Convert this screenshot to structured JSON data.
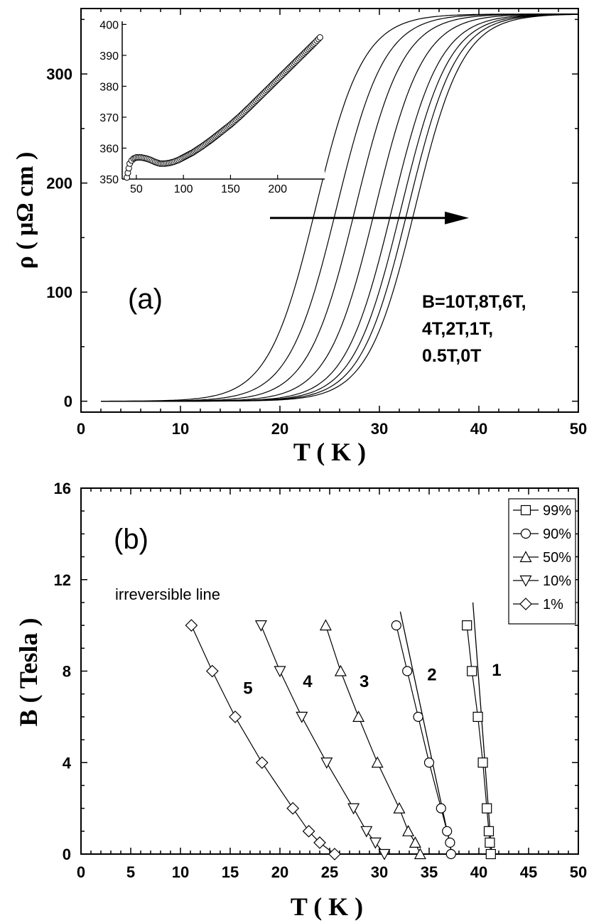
{
  "chart_data": [
    {
      "panel": "(a)",
      "type": "line",
      "xlabel": "T ( K )",
      "ylabel": "ρ ( μΩ cm )",
      "xlim": [
        0,
        50
      ],
      "ylim": [
        -10,
        360
      ],
      "xticks": [
        0,
        10,
        20,
        30,
        40,
        50
      ],
      "yticks": [
        0,
        100,
        200,
        300
      ],
      "panel_label": "(a)",
      "annotation_lines": [
        "B=10T,8T,6T,",
        "4T,2T,1T,",
        "0.5T,0T"
      ],
      "arrow": {
        "from": [
          19,
          168
        ],
        "to": [
          39,
          168
        ]
      },
      "curve_model": {
        "rho_normal": 355,
        "transition_width_K": 2.4,
        "T_start": 2,
        "T_end": 50
      },
      "series": [
        {
          "field": "10T",
          "T_mid": 23.6
        },
        {
          "field": "8T",
          "T_mid": 25.7
        },
        {
          "field": "6T",
          "T_mid": 27.6
        },
        {
          "field": "4T",
          "T_mid": 29.6
        },
        {
          "field": "2T",
          "T_mid": 31.3
        },
        {
          "field": "1T",
          "T_mid": 32.2
        },
        {
          "field": "0.5T",
          "T_mid": 32.9
        },
        {
          "field": "0T",
          "T_mid": 33.6
        }
      ],
      "inset": {
        "type": "scatter",
        "xlim": [
          35,
          250
        ],
        "ylim": [
          350,
          401
        ],
        "xticks": [
          50,
          100,
          150,
          200
        ],
        "yticks": [
          350,
          360,
          370,
          380,
          390,
          400
        ],
        "x": [
          40,
          41,
          42,
          43,
          45,
          47,
          50,
          55,
          60,
          65,
          70,
          75,
          80,
          85,
          90,
          95,
          100,
          110,
          120,
          130,
          140,
          150,
          160,
          170,
          180,
          190,
          200,
          210,
          220,
          230,
          240,
          245
        ],
        "y": [
          350.5,
          352,
          353.5,
          355,
          356,
          356.6,
          357,
          357,
          356.7,
          356.2,
          355.5,
          355,
          355,
          355.2,
          355.6,
          356.2,
          357,
          358.6,
          360.6,
          362.8,
          365.2,
          367.6,
          370.3,
          373.2,
          376.2,
          379.2,
          382.2,
          385.2,
          388.2,
          391.2,
          394.2,
          395.8
        ]
      }
    },
    {
      "panel": "(b)",
      "type": "scatter",
      "xlabel": "T ( K )",
      "ylabel": "B ( Tesla )",
      "xlim": [
        0,
        50
      ],
      "ylim": [
        0,
        16
      ],
      "xticks": [
        0,
        5,
        10,
        15,
        20,
        25,
        30,
        35,
        40,
        45,
        50
      ],
      "yticks": [
        0,
        4,
        8,
        12,
        16
      ],
      "panel_label": "(b)",
      "annotation": "irreversible line",
      "legend_position": "top-right",
      "series": [
        {
          "name": "99%",
          "marker": "square",
          "curve_label": "1",
          "x": [
            38.8,
            39.3,
            39.9,
            40.4,
            40.8,
            41.0,
            41.1,
            41.2
          ],
          "y": [
            10,
            8,
            6,
            4,
            2,
            1,
            0.5,
            0
          ]
        },
        {
          "name": "90%",
          "marker": "circle",
          "curve_label": "2",
          "x": [
            31.7,
            32.8,
            33.9,
            35.0,
            36.2,
            36.8,
            37.1,
            37.2
          ],
          "y": [
            10,
            8,
            6,
            4,
            2,
            1,
            0.5,
            0
          ]
        },
        {
          "name": "50%",
          "marker": "triangle-up",
          "curve_label": "3",
          "x": [
            24.6,
            26.1,
            27.9,
            29.8,
            32.0,
            32.9,
            33.6,
            34.1
          ],
          "y": [
            10,
            8,
            6,
            4,
            2,
            1,
            0.5,
            0
          ]
        },
        {
          "name": "10%",
          "marker": "triangle-down",
          "curve_label": "4",
          "x": [
            18.1,
            20.0,
            22.2,
            24.7,
            27.4,
            28.7,
            29.6,
            30.5
          ],
          "y": [
            10,
            8,
            6,
            4,
            2,
            1,
            0.5,
            0
          ]
        },
        {
          "name": "1%",
          "marker": "diamond",
          "curve_label": "5",
          "x": [
            11.1,
            13.2,
            15.5,
            18.2,
            21.3,
            22.9,
            24.0,
            25.5
          ],
          "y": [
            10,
            8,
            6,
            4,
            2,
            1,
            0.5,
            0
          ]
        }
      ],
      "fit_lines": [
        {
          "from": [
            32.1,
            10.6
          ],
          "to": [
            37.3,
            0
          ]
        },
        {
          "from": [
            39.4,
            11.0
          ],
          "to": [
            41.3,
            0
          ]
        }
      ]
    }
  ]
}
